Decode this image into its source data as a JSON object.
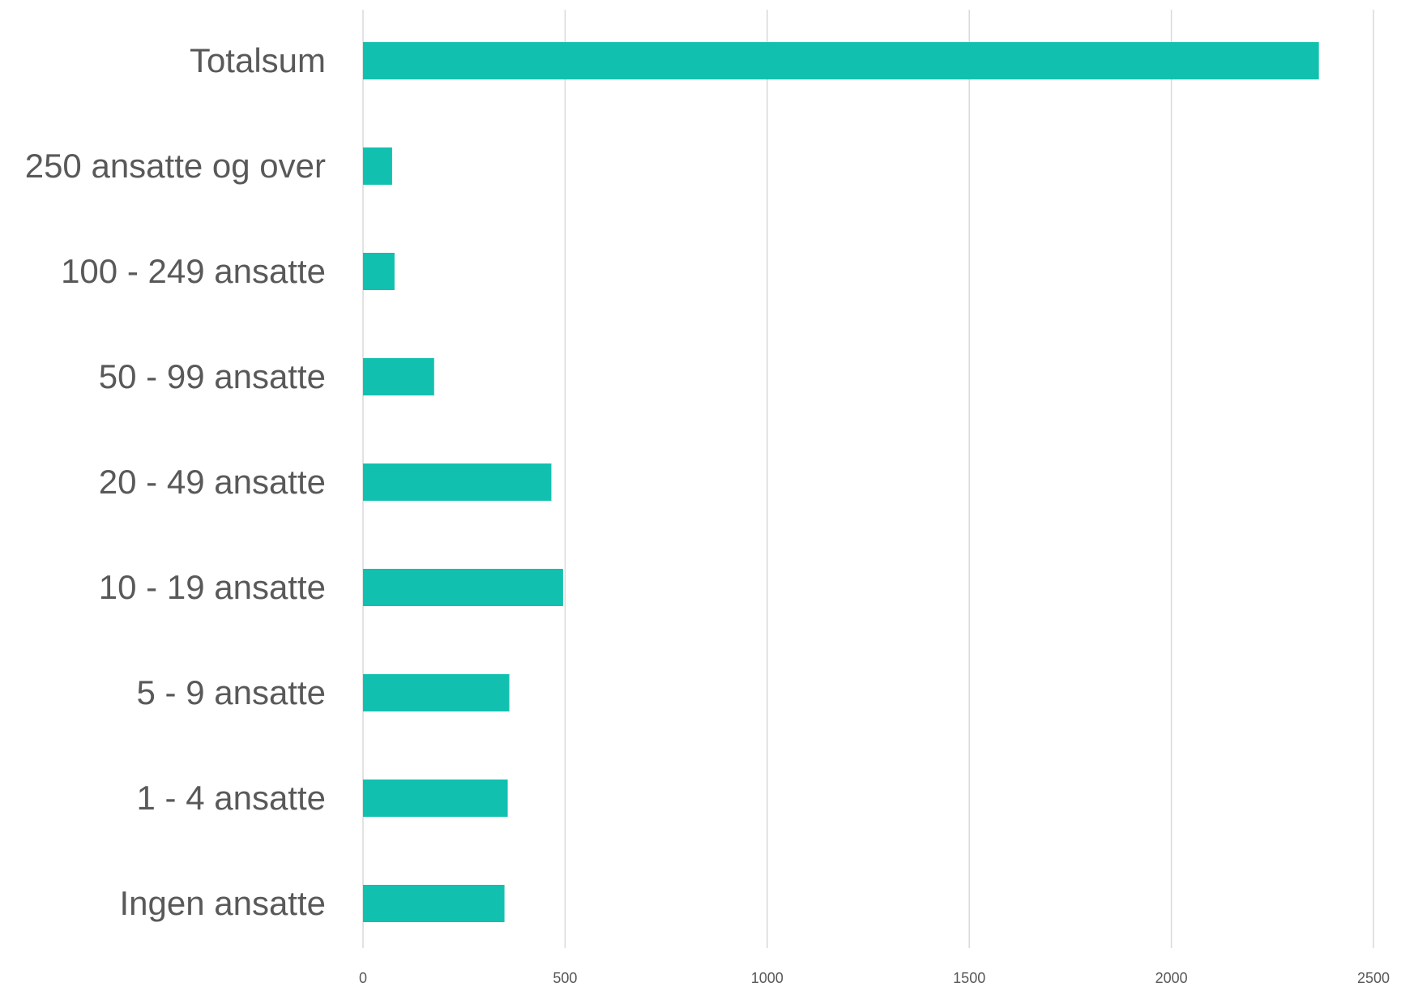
{
  "chart_data": {
    "type": "bar",
    "orientation": "horizontal",
    "title": "",
    "xlabel": "",
    "ylabel": "",
    "categories": [
      "Totalsum",
      "250 ansatte og over",
      "100 - 249 ansatte",
      "50 - 99 ansatte",
      "20 - 49 ansatte",
      "10 - 19 ansatte",
      "5 - 9 ansatte",
      "1 - 4 ansatte",
      "Ingen ansatte"
    ],
    "values": [
      2365,
      72,
      78,
      176,
      466,
      495,
      362,
      358,
      350
    ],
    "xlim": [
      0,
      2500
    ],
    "xticks": [
      "0",
      "500",
      "1000",
      "1500",
      "2000",
      "2500"
    ],
    "grid": true,
    "legend": "none",
    "colors": {
      "bar": "#12c0af",
      "grid": "#d9d9d9",
      "text": "#595959"
    }
  }
}
